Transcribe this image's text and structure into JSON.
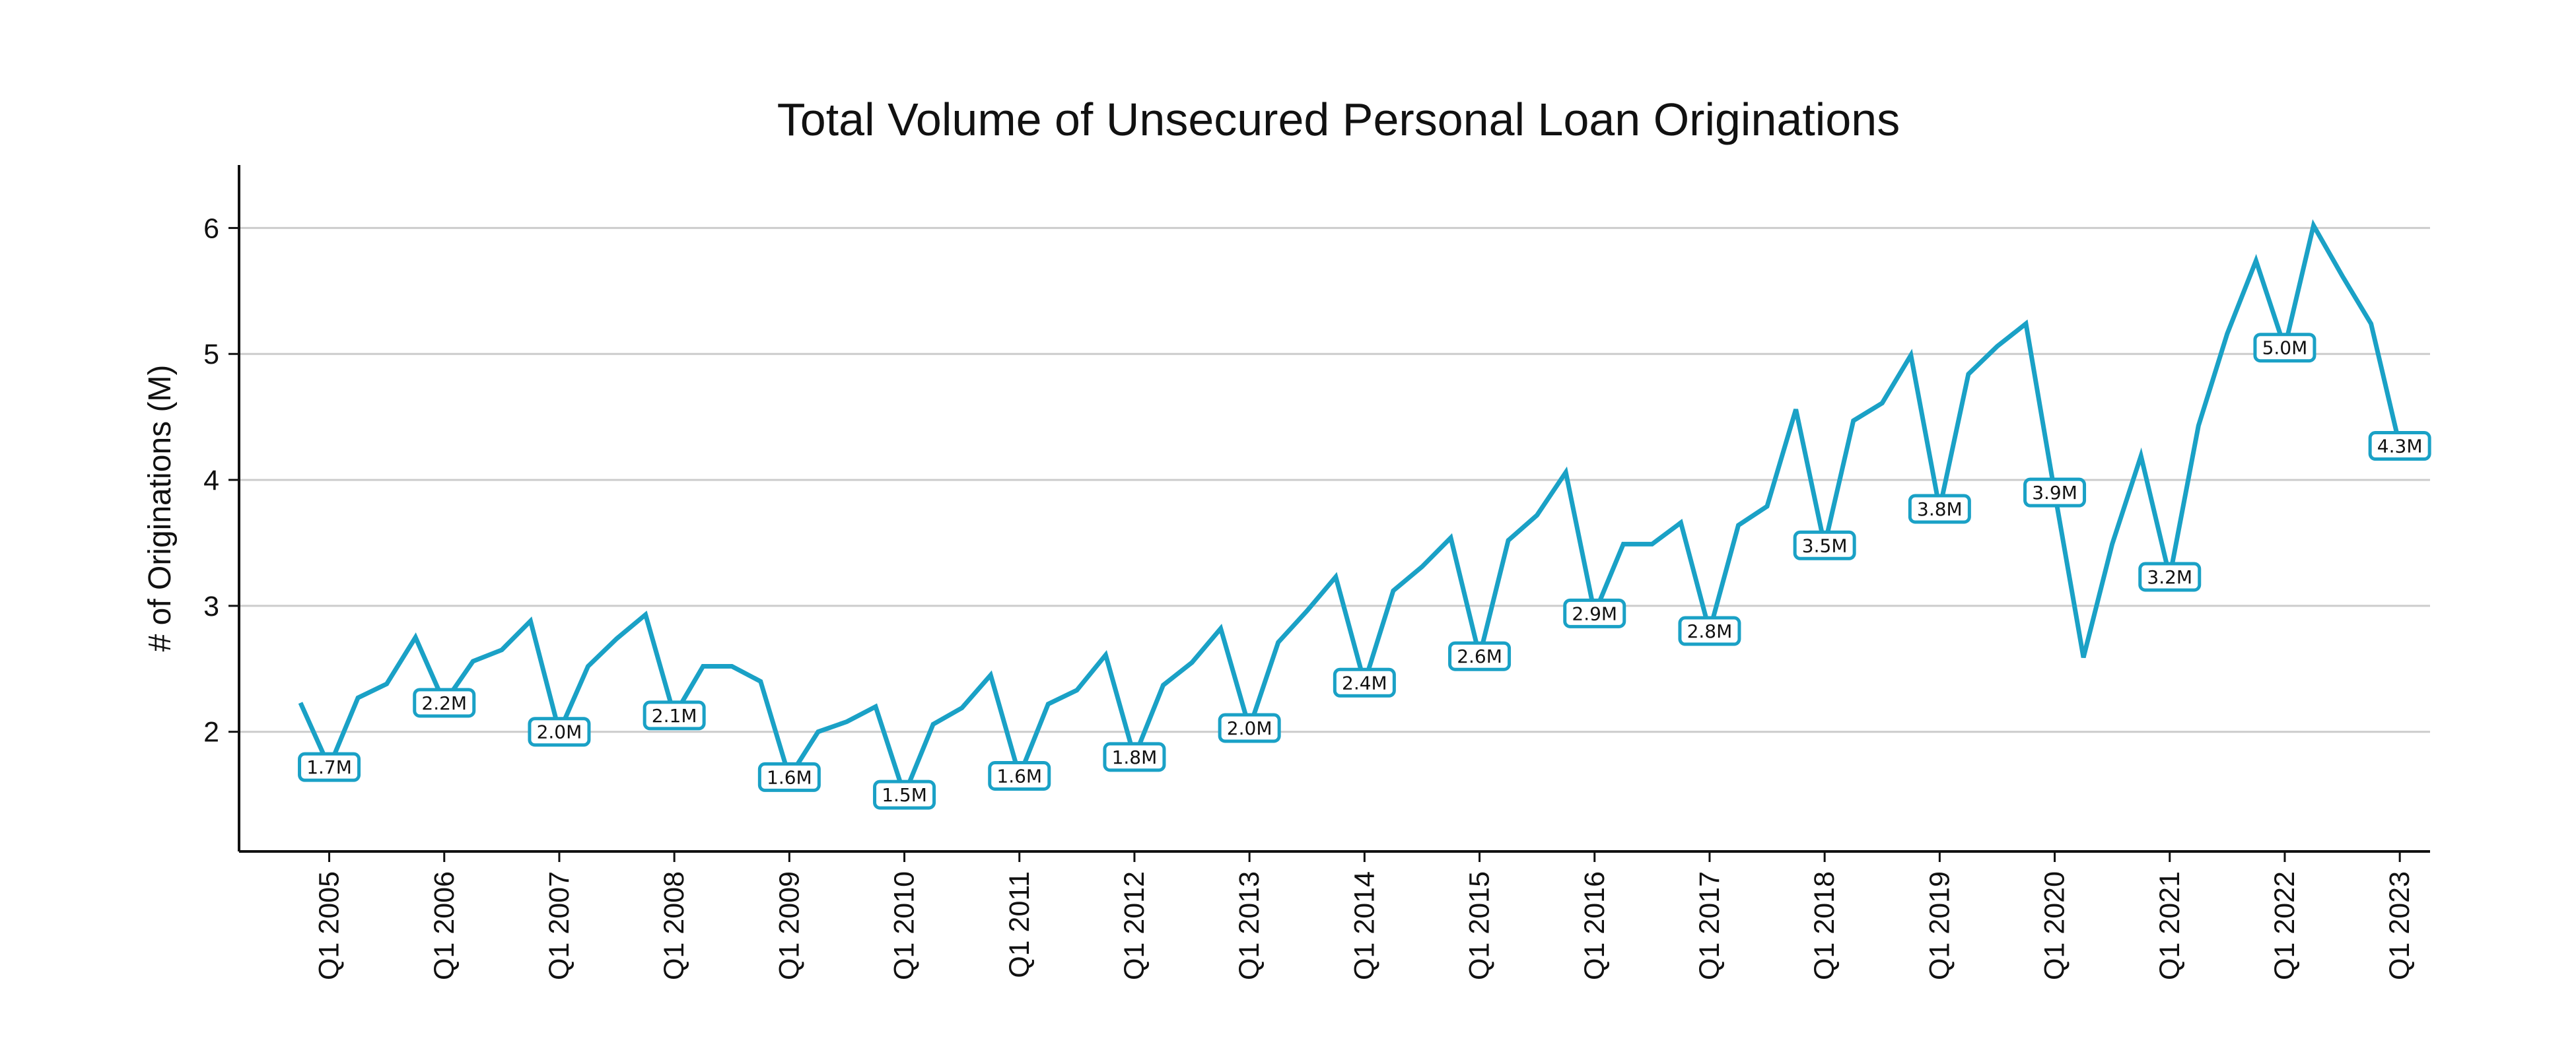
{
  "chart_data": {
    "type": "line",
    "title": "Total Volume of Unsecured Personal Loan Originations",
    "xlabel": "",
    "ylabel": "# of Originations (M)",
    "y_ticks": [
      2,
      3,
      4,
      5,
      6
    ],
    "ylim": [
      1.05,
      6.5
    ],
    "grid": "horizontal",
    "legend": "none",
    "line_color": "#1aa1c6",
    "x_tick_labels": [
      "Q1 2005",
      "Q1 2006",
      "Q1 2007",
      "Q1 2008",
      "Q1 2009",
      "Q1 2010",
      "Q1 2011",
      "Q1 2012",
      "Q1 2013",
      "Q1 2014",
      "Q1 2015",
      "Q1 2016",
      "Q1 2017",
      "Q1 2018",
      "Q1 2019",
      "Q1 2020",
      "Q1 2021",
      "Q1 2022",
      "Q1 2023"
    ],
    "x_tick_label_positions": [
      1,
      5,
      9,
      13,
      17,
      21,
      25,
      29,
      33,
      37,
      41,
      45,
      49,
      53,
      57,
      61,
      65,
      69,
      73
    ],
    "series": [
      {
        "name": "",
        "x": [
          "Q4 2004",
          "Q1 2005",
          "Q2 2005",
          "Q3 2005",
          "Q4 2005",
          "Q1 2006",
          "Q2 2006",
          "Q3 2006",
          "Q4 2006",
          "Q1 2007",
          "Q2 2007",
          "Q3 2007",
          "Q4 2007",
          "Q1 2008",
          "Q2 2008",
          "Q3 2008",
          "Q4 2008",
          "Q1 2009",
          "Q2 2009",
          "Q3 2009",
          "Q4 2009",
          "Q1 2010",
          "Q2 2010",
          "Q3 2010",
          "Q4 2010",
          "Q1 2011",
          "Q2 2011",
          "Q3 2011",
          "Q4 2011",
          "Q1 2012",
          "Q2 2012",
          "Q3 2012",
          "Q4 2012",
          "Q1 2013",
          "Q2 2013",
          "Q3 2013",
          "Q4 2013",
          "Q1 2014",
          "Q2 2014",
          "Q3 2014",
          "Q4 2014",
          "Q1 2015",
          "Q2 2015",
          "Q3 2015",
          "Q4 2015",
          "Q1 2016",
          "Q2 2016",
          "Q3 2016",
          "Q4 2016",
          "Q1 2017",
          "Q2 2017",
          "Q3 2017",
          "Q4 2017",
          "Q1 2018",
          "Q2 2018",
          "Q3 2018",
          "Q4 2018",
          "Q1 2019",
          "Q2 2019",
          "Q3 2019",
          "Q4 2019",
          "Q1 2020",
          "Q2 2020",
          "Q3 2020",
          "Q4 2020",
          "Q1 2021",
          "Q2 2021",
          "Q3 2021",
          "Q4 2021",
          "Q1 2022",
          "Q2 2022",
          "Q3 2022",
          "Q4 2022",
          "Q1 2023"
        ],
        "values": [
          2.23,
          1.72,
          2.27,
          2.38,
          2.75,
          2.23,
          2.56,
          2.65,
          2.88,
          2.0,
          2.52,
          2.74,
          2.93,
          2.13,
          2.52,
          2.52,
          2.4,
          1.64,
          2.0,
          2.08,
          2.2,
          1.5,
          2.06,
          2.19,
          2.45,
          1.65,
          2.22,
          2.33,
          2.61,
          1.8,
          2.37,
          2.55,
          2.82,
          2.03,
          2.71,
          2.96,
          3.23,
          2.39,
          3.12,
          3.31,
          3.54,
          2.6,
          3.52,
          3.72,
          4.06,
          2.94,
          3.49,
          3.49,
          3.66,
          2.8,
          3.64,
          3.79,
          4.56,
          3.48,
          4.47,
          4.61,
          4.99,
          3.77,
          4.84,
          5.06,
          5.24,
          3.9,
          2.59,
          3.49,
          4.19,
          3.23,
          4.43,
          5.16,
          5.74,
          5.05,
          6.02,
          5.62,
          5.24,
          4.27
        ]
      }
    ],
    "annotations": [
      {
        "x": "Q1 2005",
        "y": 1.72,
        "text": "1.7M"
      },
      {
        "x": "Q1 2006",
        "y": 2.23,
        "text": "2.2M"
      },
      {
        "x": "Q1 2007",
        "y": 2.0,
        "text": "2.0M"
      },
      {
        "x": "Q1 2008",
        "y": 2.13,
        "text": "2.1M"
      },
      {
        "x": "Q1 2009",
        "y": 1.64,
        "text": "1.6M"
      },
      {
        "x": "Q1 2010",
        "y": 1.5,
        "text": "1.5M"
      },
      {
        "x": "Q1 2011",
        "y": 1.65,
        "text": "1.6M"
      },
      {
        "x": "Q1 2012",
        "y": 1.8,
        "text": "1.8M"
      },
      {
        "x": "Q1 2013",
        "y": 2.03,
        "text": "2.0M"
      },
      {
        "x": "Q1 2014",
        "y": 2.39,
        "text": "2.4M"
      },
      {
        "x": "Q1 2015",
        "y": 2.6,
        "text": "2.6M"
      },
      {
        "x": "Q1 2016",
        "y": 2.94,
        "text": "2.9M"
      },
      {
        "x": "Q1 2017",
        "y": 2.8,
        "text": "2.8M"
      },
      {
        "x": "Q1 2018",
        "y": 3.48,
        "text": "3.5M"
      },
      {
        "x": "Q1 2019",
        "y": 3.77,
        "text": "3.8M"
      },
      {
        "x": "Q1 2020",
        "y": 3.9,
        "text": "3.9M"
      },
      {
        "x": "Q1 2021",
        "y": 3.23,
        "text": "3.2M"
      },
      {
        "x": "Q1 2022",
        "y": 5.05,
        "text": "5.0M"
      },
      {
        "x": "Q1 2023",
        "y": 4.27,
        "text": "4.3M"
      }
    ]
  }
}
